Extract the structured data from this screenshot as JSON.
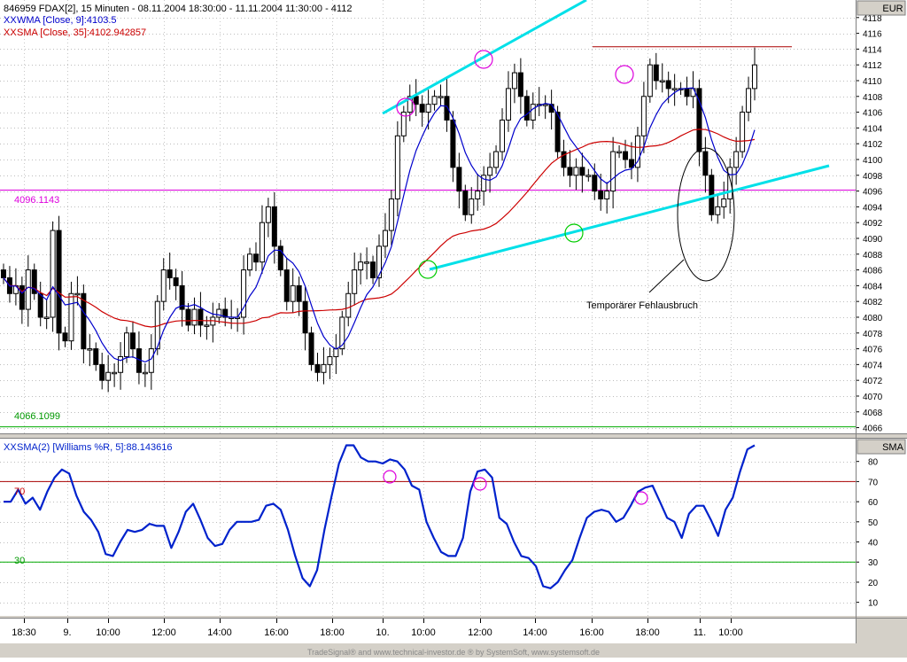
{
  "header": {
    "title": "846959  FDAX[2], 15 Minuten - 08.11.2004 18:30:00 - 11.11.2004 11:30:00 - 4112",
    "legend_wma": "WMA [Close, 9]:4103.5",
    "legend_sma": "SMA [Close, 35]:4102.942857",
    "legend_prefix": "XX"
  },
  "colors": {
    "wma": "#0000cc",
    "sma": "#cc0000",
    "trendline": "#00e0e8",
    "magenta_line": "#dd00dd",
    "green_line": "#00aa00",
    "circle_mark": "#dd00dd",
    "circle_green": "#00cc00",
    "williams": "#0022cc"
  },
  "price_axis": {
    "currency": "EUR",
    "ticks": [
      4066,
      4068,
      4070,
      4072,
      4074,
      4076,
      4078,
      4080,
      4082,
      4084,
      4086,
      4088,
      4090,
      4092,
      4094,
      4096,
      4098,
      4100,
      4102,
      4104,
      4106,
      4108,
      4110,
      4112,
      4114,
      4116,
      4118
    ],
    "ylim": [
      4065.5,
      4120
    ]
  },
  "indicator": {
    "legend": "SMA(2) [Williams %R, 5]:88.143616",
    "legend_prefix": "XX",
    "axis_label": "SMA",
    "ticks": [
      10,
      20,
      30,
      40,
      50,
      60,
      70,
      80
    ],
    "ylim": [
      5,
      90
    ],
    "level_70_label": "70",
    "level_30_label": "30"
  },
  "time_axis": {
    "labels": [
      "18:30",
      "9.",
      "10:00",
      "12:00",
      "14:00",
      "16:00",
      "18:00",
      "10.",
      "10:00",
      "12:00",
      "14:00",
      "16:00",
      "18:00",
      "11.",
      "10:00"
    ]
  },
  "annotations": {
    "magenta_level_label": "4096.1143",
    "green_level_label": "4066.1099",
    "breakout_label": "Temporärer Fehlausbruch"
  },
  "footer": {
    "credit": "TradeSignal® and www.technical-investor.de ® by SystemSoft, www.systemsoft.de"
  },
  "chart_data": [
    {
      "type": "candlestick",
      "title": "846959  FDAX[2], 15 Minuten - 08.11.2004 18:30:00 - 11.11.2004 11:30:00 - 4112",
      "x_tick_labels": [
        "18:30",
        "9.",
        "10:00",
        "12:00",
        "14:00",
        "16:00",
        "18:00",
        "10.",
        "10:00",
        "12:00",
        "14:00",
        "16:00",
        "18:00",
        "11.",
        "10:00"
      ],
      "ylim": [
        4065.5,
        4120
      ],
      "horizontal_levels": [
        {
          "value": 4096.1143,
          "label": "4096.1143"
        },
        {
          "value": 4066.1099,
          "label": "4066.1099"
        },
        {
          "value": 4114.3,
          "label": ""
        }
      ],
      "candles_close": [
        4085,
        4083,
        4084,
        4081,
        4086,
        4083,
        4080,
        4080,
        4091,
        4078,
        4077,
        4083,
        4083,
        4076,
        4076,
        4074,
        4072,
        4073,
        4073,
        4075,
        4078,
        4076,
        4073,
        4073,
        4076,
        4082,
        4086,
        4085,
        4084,
        4081,
        4079,
        4081,
        4079,
        4079,
        4080,
        4081,
        4080,
        4080,
        4080,
        4086,
        4088,
        4087,
        4092,
        4094,
        4089,
        4086,
        4082,
        4084,
        4082,
        4078,
        4074,
        4073,
        4074,
        4075,
        4076,
        4080,
        4083,
        4086,
        4087,
        4087,
        4085,
        4089,
        4091,
        4095,
        4103,
        4106,
        4108,
        4107,
        4106,
        4107,
        4108,
        4108,
        4105,
        4099,
        4096,
        4093,
        4095,
        4096,
        4098,
        4099,
        4101,
        4105,
        4109,
        4111,
        4108,
        4105,
        4107,
        4107,
        4107,
        4106,
        4101,
        4099,
        4098,
        4099,
        4098,
        4098,
        4096,
        4095,
        4096,
        4101,
        4101,
        4100,
        4099,
        4103,
        4108,
        4112,
        4110,
        4110,
        4109,
        4109,
        4109,
        4108,
        4109,
        4101,
        4098,
        4093,
        4094,
        4095,
        4099,
        4101,
        4106,
        4109,
        4112
      ],
      "series": [
        {
          "name": "WMA [Close, 9]",
          "type": "line"
        },
        {
          "name": "SMA [Close, 35]",
          "type": "line"
        }
      ],
      "last_values": {
        "close": 4112,
        "wma": 4103.5,
        "sma": 4102.942857
      }
    },
    {
      "type": "line",
      "title": "SMA(2) [Williams %R, 5]:88.143616",
      "ylim": [
        5,
        90
      ],
      "reference_levels": [
        70,
        30
      ],
      "values": [
        60,
        60,
        66,
        59,
        62,
        56,
        65,
        72,
        76,
        74,
        63,
        55,
        51,
        45,
        34,
        33,
        40,
        46,
        45,
        46,
        49,
        48,
        48,
        37,
        45,
        55,
        59,
        51,
        42,
        38,
        39,
        46,
        50,
        50,
        50,
        51,
        58,
        59,
        56,
        46,
        33,
        22,
        18,
        26,
        46,
        63,
        79,
        88,
        88,
        82,
        80,
        80,
        79,
        81,
        80,
        76,
        68,
        66,
        50,
        42,
        35,
        33,
        33,
        42,
        65,
        75,
        76,
        72,
        52,
        49,
        40,
        33,
        32,
        28,
        18,
        17,
        20,
        26,
        31,
        42,
        52,
        55,
        56,
        55,
        50,
        52,
        58,
        65,
        67,
        68,
        60,
        52,
        50,
        42,
        54,
        58,
        58,
        51,
        43,
        56,
        62,
        75,
        86,
        88
      ]
    }
  ]
}
